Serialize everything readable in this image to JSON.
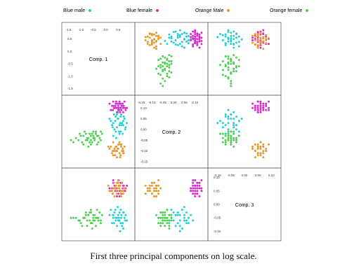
{
  "caption": "First three principal components on log scale.",
  "chart_data": {
    "type": "scatter",
    "variables": [
      "Comp. 1",
      "Comp. 2",
      "Comp. 3"
    ],
    "ranges": [
      [
        -1.6,
        1.0
      ],
      [
        -0.16,
        0.14
      ],
      [
        -0.12,
        0.12
      ]
    ],
    "ticks": [
      {
        "values": [
          -1.5,
          -1.0,
          -0.5,
          0.0,
          0.5
        ],
        "labels": [
          "-1.5",
          "-1.0",
          "-0.5",
          "0.0",
          "0.5"
        ]
      },
      {
        "values": [
          -0.15,
          -0.1,
          -0.05,
          0.0,
          0.05,
          0.1
        ],
        "labels": [
          "-0.15",
          "-0.10",
          "-0.05",
          "0.00",
          "0.05",
          "0.10"
        ]
      },
      {
        "values": [
          -0.1,
          -0.05,
          0.0,
          0.05,
          0.1
        ],
        "labels": [
          "-0.10",
          "-0.05",
          "0.00",
          "0.05",
          "0.10"
        ]
      }
    ],
    "legend_position": "top",
    "series": [
      {
        "name": "Blue male",
        "color": "#25cfd2",
        "points": [
          [
            0.3,
            0.03,
            -0.04
          ],
          [
            0.5,
            0.05,
            -0.06
          ],
          [
            0.7,
            0.02,
            -0.03
          ],
          [
            0.4,
            -0.01,
            -0.05
          ],
          [
            0.6,
            0.06,
            -0.07
          ],
          [
            0.2,
            0.04,
            -0.02
          ],
          [
            0.8,
            0.01,
            -0.04
          ],
          [
            0.45,
            0.07,
            -0.05
          ],
          [
            0.55,
            -0.02,
            -0.06
          ],
          [
            0.65,
            0.03,
            -0.08
          ],
          [
            0.35,
            0.0,
            -0.03
          ],
          [
            0.75,
            0.05,
            -0.05
          ],
          [
            0.25,
            0.02,
            -0.07
          ],
          [
            0.5,
            0.08,
            -0.04
          ],
          [
            0.6,
            -0.01,
            -0.02
          ],
          [
            0.4,
            0.06,
            -0.06
          ],
          [
            0.7,
            0.04,
            -0.09
          ],
          [
            0.3,
            -0.03,
            -0.05
          ],
          [
            0.55,
            0.02,
            -0.03
          ],
          [
            0.85,
            0.03,
            -0.06
          ],
          [
            0.15,
            0.05,
            -0.04
          ],
          [
            0.45,
            0.01,
            -0.08
          ],
          [
            0.62,
            0.07,
            -0.05
          ],
          [
            0.38,
            0.04,
            -0.02
          ],
          [
            0.68,
            -0.02,
            -0.07
          ],
          [
            0.52,
            0.09,
            -0.06
          ],
          [
            0.28,
            0.01,
            -0.04
          ],
          [
            0.72,
            0.06,
            -0.03
          ],
          [
            0.42,
            -0.04,
            -0.05
          ],
          [
            0.58,
            0.03,
            -0.1
          ],
          [
            0.48,
            0.05,
            -0.01
          ],
          [
            0.78,
            0.0,
            -0.06
          ],
          [
            0.33,
            0.07,
            -0.07
          ],
          [
            0.63,
            0.02,
            -0.04
          ],
          [
            0.53,
            -0.01,
            -0.05
          ]
        ]
      },
      {
        "name": "Blue female",
        "color": "#d62ccd",
        "points": [
          [
            0.4,
            0.1,
            0.06
          ],
          [
            0.6,
            0.12,
            0.08
          ],
          [
            0.2,
            0.09,
            0.05
          ],
          [
            0.5,
            0.11,
            0.04
          ],
          [
            0.7,
            0.1,
            0.07
          ],
          [
            0.3,
            0.13,
            0.09
          ],
          [
            0.8,
            0.09,
            0.06
          ],
          [
            0.45,
            0.08,
            0.05
          ],
          [
            0.55,
            0.12,
            0.03
          ],
          [
            0.65,
            0.11,
            0.08
          ],
          [
            0.35,
            0.1,
            0.07
          ],
          [
            0.75,
            0.13,
            0.05
          ],
          [
            0.25,
            0.11,
            0.06
          ],
          [
            0.5,
            0.09,
            0.09
          ],
          [
            0.6,
            0.1,
            0.04
          ],
          [
            0.4,
            0.12,
            0.07
          ],
          [
            0.7,
            0.08,
            0.06
          ],
          [
            0.3,
            0.11,
            0.08
          ],
          [
            0.55,
            0.13,
            0.05
          ],
          [
            0.85,
            0.1,
            0.07
          ],
          [
            0.15,
            0.12,
            0.06
          ],
          [
            0.45,
            0.1,
            0.03
          ],
          [
            0.62,
            0.09,
            0.08
          ],
          [
            0.38,
            0.11,
            0.05
          ],
          [
            0.68,
            0.12,
            0.06
          ],
          [
            0.52,
            0.1,
            0.09
          ],
          [
            0.28,
            0.09,
            0.04
          ],
          [
            0.72,
            0.11,
            0.07
          ],
          [
            0.42,
            0.13,
            0.06
          ],
          [
            0.58,
            0.08,
            0.05
          ],
          [
            0.48,
            0.12,
            0.08
          ],
          [
            0.78,
            0.1,
            0.05
          ],
          [
            0.33,
            0.1,
            0.06
          ],
          [
            0.63,
            0.11,
            0.04
          ],
          [
            0.53,
            0.09,
            0.07
          ]
        ]
      },
      {
        "name": "Orange Male",
        "color": "#e39a30",
        "points": [
          [
            0.2,
            -0.08,
            0.05
          ],
          [
            0.4,
            -0.1,
            0.07
          ],
          [
            0.6,
            -0.07,
            0.04
          ],
          [
            0.3,
            -0.12,
            0.06
          ],
          [
            0.5,
            -0.09,
            0.08
          ],
          [
            0.7,
            -0.11,
            0.05
          ],
          [
            0.1,
            -0.08,
            0.07
          ],
          [
            0.45,
            -0.13,
            0.04
          ],
          [
            0.55,
            -0.06,
            0.06
          ],
          [
            0.65,
            -0.1,
            0.08
          ],
          [
            0.35,
            -0.09,
            0.03
          ],
          [
            0.75,
            -0.08,
            0.06
          ],
          [
            0.25,
            -0.11,
            0.05
          ],
          [
            0.5,
            -0.07,
            0.09
          ],
          [
            0.6,
            -0.12,
            0.05
          ],
          [
            0.4,
            -0.08,
            0.07
          ],
          [
            0.7,
            -0.1,
            0.04
          ],
          [
            0.3,
            -0.06,
            0.06
          ],
          [
            0.55,
            -0.11,
            0.07
          ],
          [
            0.15,
            -0.09,
            0.05
          ],
          [
            0.45,
            -0.1,
            0.08
          ],
          [
            0.62,
            -0.08,
            0.03
          ],
          [
            0.38,
            -0.12,
            0.06
          ],
          [
            0.68,
            -0.09,
            0.05
          ],
          [
            0.52,
            -0.07,
            0.07
          ],
          [
            0.28,
            -0.1,
            0.04
          ],
          [
            0.72,
            -0.11,
            0.06
          ],
          [
            0.42,
            -0.08,
            0.05
          ],
          [
            0.58,
            -0.13,
            0.07
          ],
          [
            0.48,
            -0.09,
            0.06
          ],
          [
            0.33,
            -0.1,
            0.08
          ],
          [
            0.63,
            -0.07,
            0.05
          ]
        ]
      },
      {
        "name": "Orange female",
        "color": "#4fcf52",
        "points": [
          [
            -0.5,
            -0.04,
            -0.06
          ],
          [
            -0.8,
            -0.02,
            -0.04
          ],
          [
            -0.3,
            -0.06,
            -0.05
          ],
          [
            -1.0,
            -0.03,
            -0.07
          ],
          [
            -0.6,
            -0.05,
            -0.03
          ],
          [
            -0.2,
            -0.01,
            -0.06
          ],
          [
            -0.9,
            -0.07,
            -0.05
          ],
          [
            -0.4,
            -0.02,
            -0.08
          ],
          [
            -0.7,
            -0.04,
            -0.04
          ],
          [
            -1.1,
            -0.05,
            -0.06
          ],
          [
            -0.35,
            -0.03,
            -0.02
          ],
          [
            -0.55,
            -0.06,
            -0.07
          ],
          [
            -0.85,
            -0.01,
            -0.05
          ],
          [
            -0.45,
            -0.05,
            -0.04
          ],
          [
            -0.65,
            -0.02,
            -0.06
          ],
          [
            -0.25,
            -0.04,
            -0.03
          ],
          [
            -0.95,
            -0.06,
            -0.08
          ],
          [
            -0.5,
            -0.03,
            -0.05
          ],
          [
            -0.75,
            -0.05,
            -0.06
          ],
          [
            -0.15,
            -0.02,
            -0.04
          ],
          [
            -1.2,
            -0.04,
            -0.05
          ],
          [
            -0.6,
            -0.07,
            -0.07
          ],
          [
            -0.4,
            -0.01,
            -0.05
          ],
          [
            -0.8,
            -0.05,
            -0.03
          ],
          [
            -0.3,
            -0.03,
            -0.06
          ],
          [
            -1.3,
            -0.06,
            -0.05
          ],
          [
            -0.55,
            -0.02,
            -0.09
          ],
          [
            -0.7,
            -0.08,
            -0.04
          ],
          [
            -0.45,
            -0.04,
            -0.06
          ],
          [
            -0.9,
            -0.03,
            -0.05
          ],
          [
            -0.2,
            -0.05,
            -0.07
          ],
          [
            -0.65,
            -0.06,
            -0.03
          ],
          [
            -1.05,
            -0.02,
            -0.06
          ],
          [
            -0.35,
            -0.07,
            -0.05
          ],
          [
            -0.5,
            -0.01,
            -0.04
          ],
          [
            -0.75,
            -0.04,
            -0.08
          ],
          [
            -1.4,
            -0.05,
            -0.05
          ],
          [
            -0.6,
            -0.03,
            -0.02
          ]
        ]
      }
    ]
  }
}
